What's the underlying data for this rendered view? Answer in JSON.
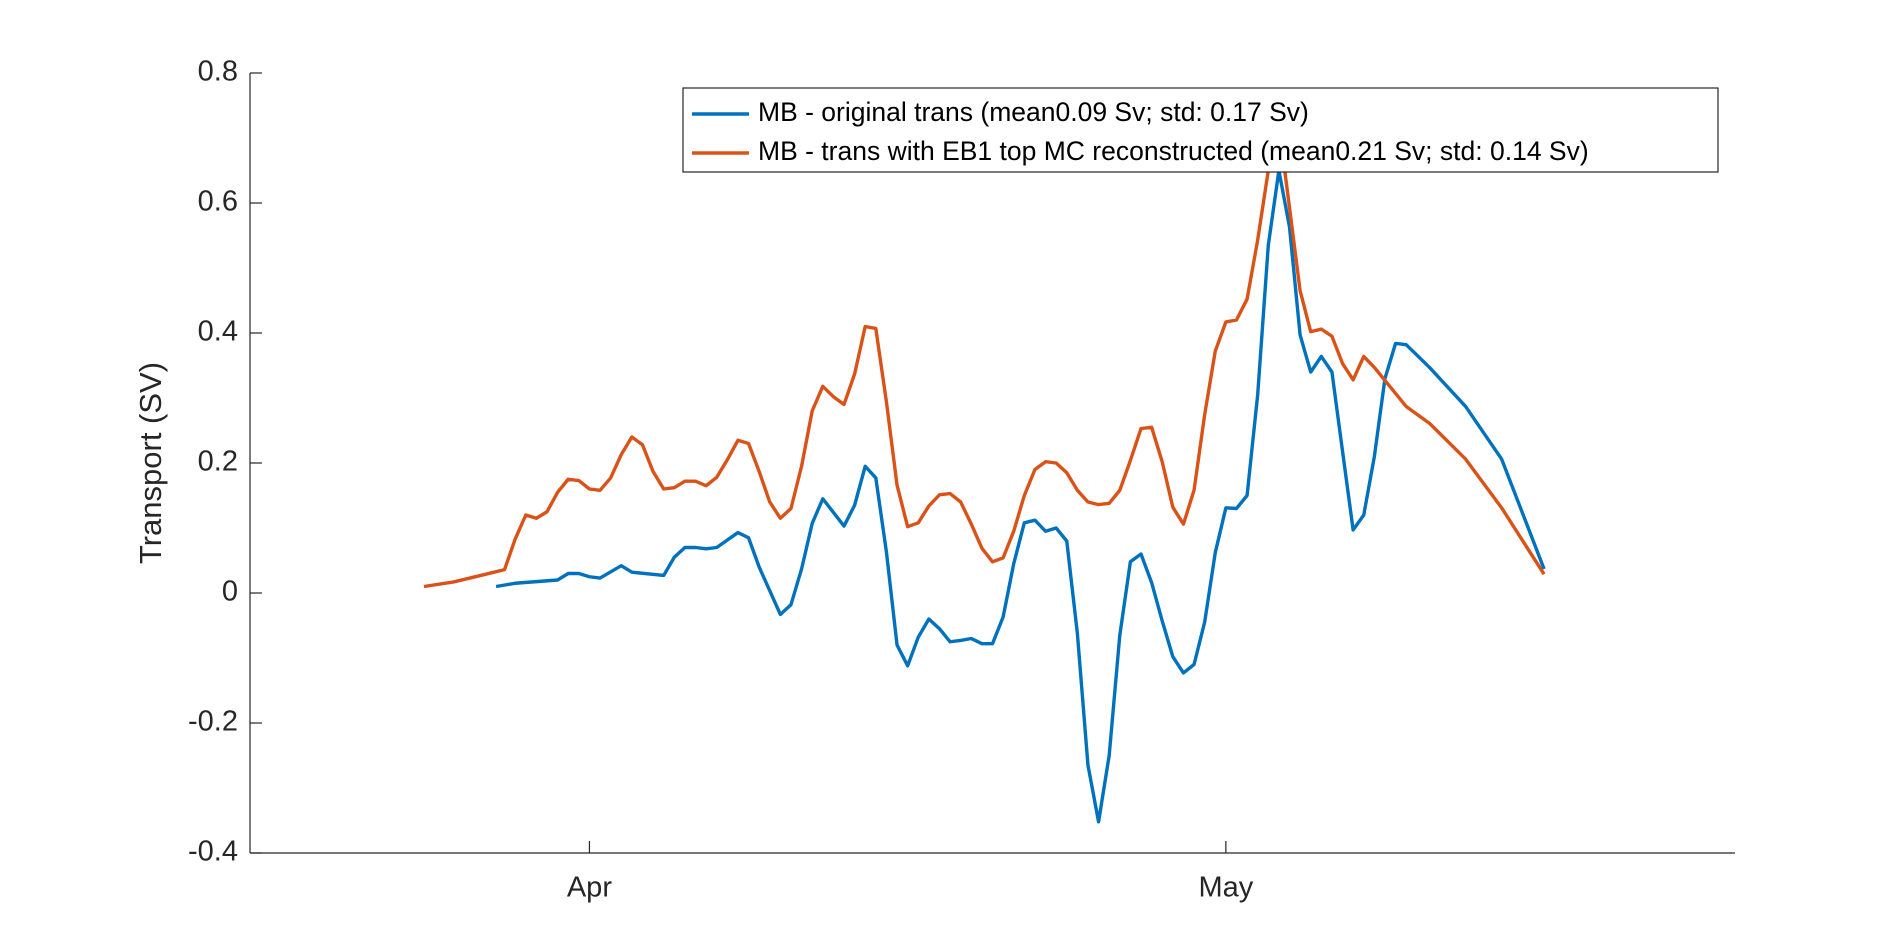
{
  "chart_data": {
    "type": "line",
    "ylabel": "Transport (SV)",
    "xlim": [
      -16,
      54
    ],
    "xticks": [
      {
        "value": 0,
        "label": "Apr"
      },
      {
        "value": 30,
        "label": "May"
      }
    ],
    "ylim": [
      -0.4,
      0.8
    ],
    "yticks": [
      -0.4,
      -0.2,
      0,
      0.2,
      0.4,
      0.6,
      0.8
    ],
    "grid": false,
    "legend": "northeast",
    "series": [
      {
        "name": "MB - original trans (mean0.09 Sv; std: 0.17 Sv)",
        "color": "#0072bd",
        "x": [
          -4.4,
          -3.5,
          -1.5,
          -1,
          -0.5,
          0,
          0.5,
          1.5,
          2,
          3.5,
          4,
          4.5,
          5,
          5.5,
          6,
          7,
          7.5,
          8,
          9,
          9.5,
          10,
          10.5,
          11,
          12,
          12.5,
          13,
          13.5,
          14,
          14.5,
          15,
          15.5,
          16,
          16.5,
          17,
          17.5,
          18,
          18.5,
          19,
          19.5,
          20,
          20.5,
          21,
          21.5,
          22,
          22.5,
          23,
          23.5,
          24,
          24.5,
          25,
          25.5,
          26,
          26.5,
          27,
          27.5,
          28,
          28.5,
          29,
          29.5,
          30,
          30.5,
          31,
          31.5,
          32,
          32.5,
          33,
          33.5,
          34,
          34.5,
          35,
          35.5,
          36,
          36.5,
          37,
          37.5,
          38,
          38.5,
          39.6,
          41.3,
          43,
          45
        ],
        "values": [
          0.01,
          0.015,
          0.02,
          0.03,
          0.03,
          0.025,
          0.023,
          0.042,
          0.032,
          0.027,
          0.055,
          0.07,
          0.07,
          0.068,
          0.07,
          0.093,
          0.085,
          0.04,
          -0.033,
          -0.018,
          0.037,
          0.107,
          0.145,
          0.103,
          0.135,
          0.195,
          0.177,
          0.063,
          -0.08,
          -0.112,
          -0.068,
          -0.04,
          -0.055,
          -0.075,
          -0.073,
          -0.07,
          -0.078,
          -0.078,
          -0.037,
          0.045,
          0.108,
          0.112,
          0.095,
          0.1,
          0.08,
          -0.062,
          -0.265,
          -0.352,
          -0.25,
          -0.065,
          0.048,
          0.06,
          0.016,
          -0.043,
          -0.098,
          -0.123,
          -0.11,
          -0.045,
          0.062,
          0.131,
          0.13,
          0.15,
          0.305,
          0.535,
          0.65,
          0.563,
          0.397,
          0.34,
          0.364,
          0.34,
          0.218,
          0.097,
          0.12,
          0.21,
          0.33,
          0.384,
          0.382,
          0.347,
          0.287,
          0.206,
          0.037
        ]
      },
      {
        "name": "MB - trans with EB1 top MC reconstructed (mean0.21 Sv; std: 0.14 Sv)",
        "color": "#d95319",
        "x": [
          -7.8,
          -6.4,
          -5,
          -4,
          -3.5,
          -3,
          -2.5,
          -2,
          -1.5,
          -1,
          -0.5,
          0,
          0.5,
          1,
          1.5,
          2,
          2.5,
          3,
          3.5,
          4,
          4.5,
          5,
          5.5,
          6,
          6.5,
          7,
          7.5,
          8,
          8.5,
          9,
          9.5,
          10,
          10.5,
          11,
          11.5,
          12,
          12.5,
          13,
          13.5,
          14,
          14.5,
          15,
          15.5,
          16,
          16.5,
          17,
          17.5,
          18,
          18.5,
          19,
          19.5,
          20,
          20.5,
          21,
          21.5,
          22,
          22.5,
          23,
          23.5,
          24,
          24.5,
          25,
          25.5,
          26,
          26.5,
          27,
          27.5,
          28,
          28.5,
          29,
          29.5,
          30,
          30.5,
          31,
          31.5,
          32,
          32.5,
          33,
          33.5,
          34,
          34.5,
          35,
          35.5,
          36,
          36.5,
          37,
          38.5,
          39.6,
          41.3,
          43,
          45
        ],
        "values": [
          0.01,
          0.017,
          0.028,
          0.036,
          0.083,
          0.12,
          0.115,
          0.125,
          0.155,
          0.175,
          0.173,
          0.16,
          0.158,
          0.177,
          0.213,
          0.24,
          0.228,
          0.187,
          0.16,
          0.162,
          0.172,
          0.172,
          0.165,
          0.178,
          0.205,
          0.235,
          0.23,
          0.187,
          0.14,
          0.115,
          0.13,
          0.195,
          0.28,
          0.318,
          0.302,
          0.29,
          0.337,
          0.41,
          0.407,
          0.294,
          0.166,
          0.102,
          0.108,
          0.134,
          0.151,
          0.153,
          0.14,
          0.106,
          0.069,
          0.048,
          0.054,
          0.095,
          0.15,
          0.19,
          0.202,
          0.2,
          0.185,
          0.158,
          0.14,
          0.136,
          0.138,
          0.158,
          0.204,
          0.253,
          0.255,
          0.202,
          0.132,
          0.106,
          0.158,
          0.274,
          0.372,
          0.417,
          0.42,
          0.452,
          0.543,
          0.65,
          0.72,
          0.593,
          0.465,
          0.402,
          0.406,
          0.395,
          0.353,
          0.328,
          0.364,
          0.347,
          0.287,
          0.261,
          0.206,
          0.131,
          0.029
        ]
      }
    ]
  }
}
